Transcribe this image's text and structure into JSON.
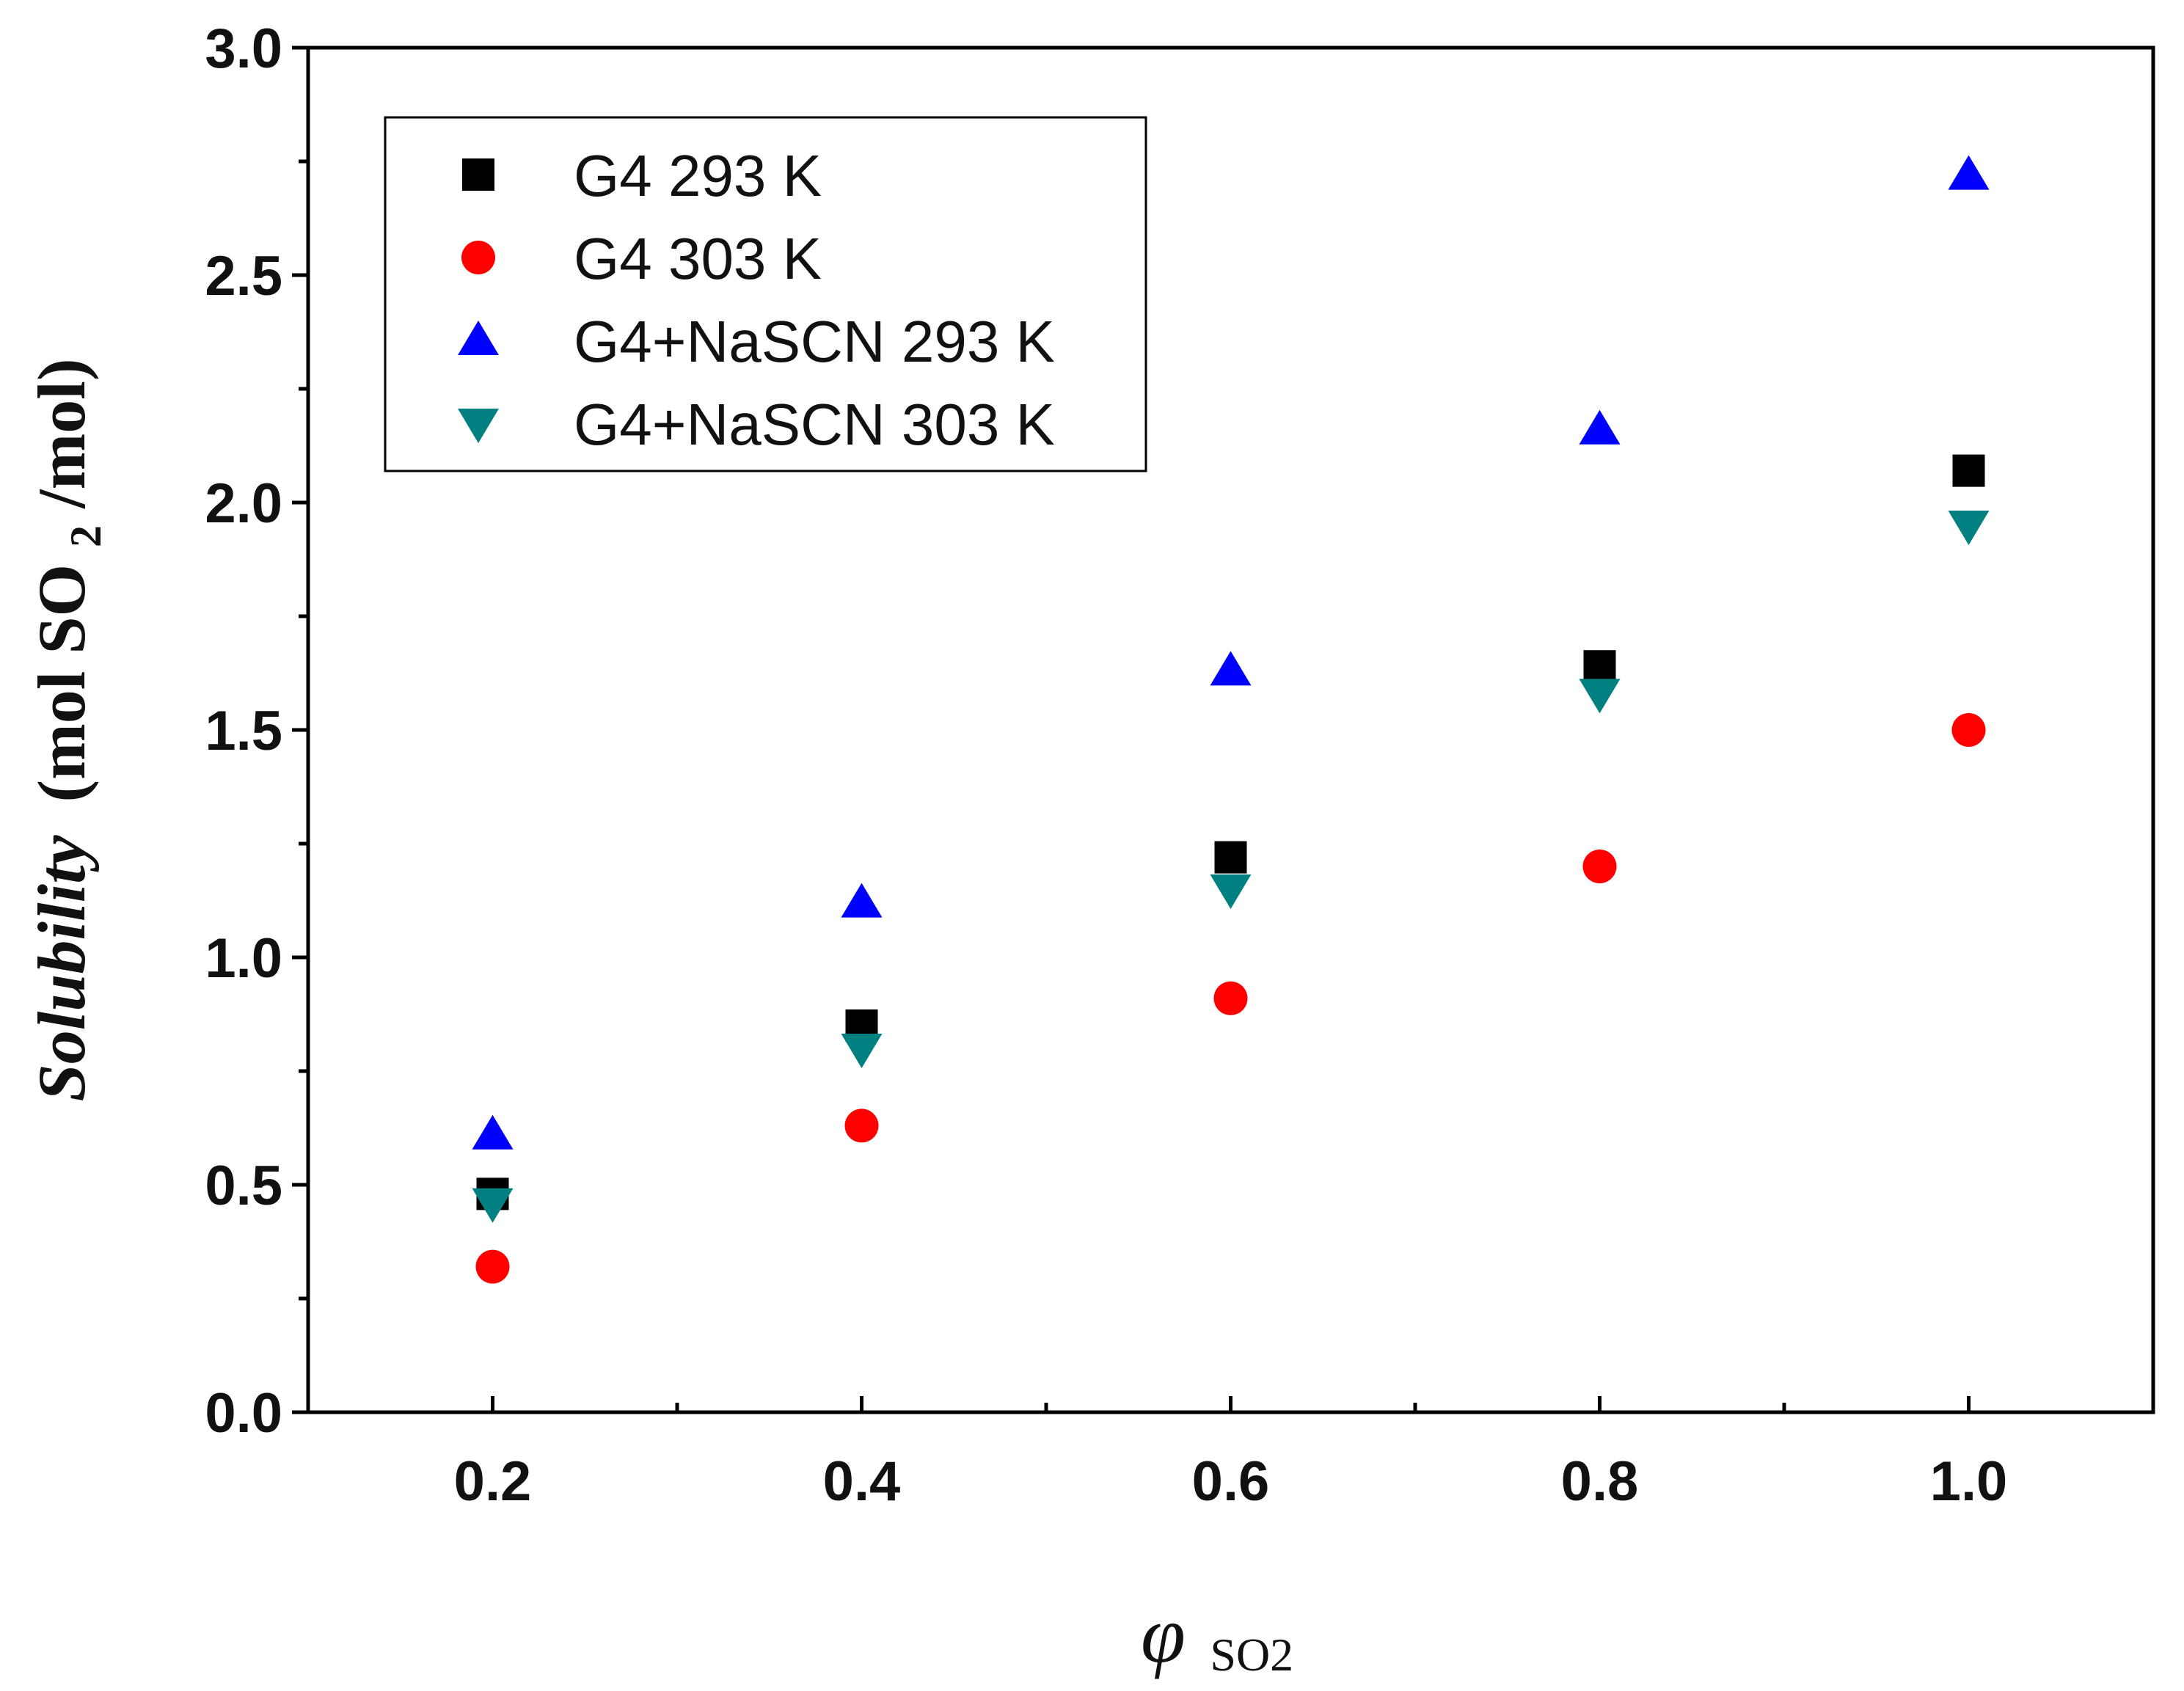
{
  "chart_data": {
    "type": "scatter",
    "xlabel": "φ",
    "xlabel_sub": "SO2",
    "ylabel": {
      "italic": "Solubility",
      "prefix": "(mol SO",
      "subscript": "2",
      "suffix": "/mol)"
    },
    "xlim": [
      0.1,
      1.1
    ],
    "ylim": [
      0.0,
      3.0
    ],
    "xticks": [
      "0.2",
      "0.4",
      "0.6",
      "0.8",
      "1.0"
    ],
    "yticks": [
      "0.0",
      "0.5",
      "1.0",
      "1.5",
      "2.0",
      "2.5",
      "3.0"
    ],
    "legend_position": "top-left",
    "x": [
      0.2,
      0.4,
      0.6,
      0.8,
      1.0
    ],
    "series": [
      {
        "name": "G4 293 K",
        "marker": "square",
        "color": "#000000",
        "values": [
          0.48,
          0.85,
          1.22,
          1.64,
          2.07
        ]
      },
      {
        "name": "G4 303 K",
        "marker": "circle",
        "color": "#ff0000",
        "values": [
          0.32,
          0.63,
          0.91,
          1.2,
          1.5
        ]
      },
      {
        "name": "G4+NaSCN 293 K",
        "marker": "triangle-up",
        "color": "#0000ff",
        "values": [
          0.61,
          1.12,
          1.63,
          2.16,
          2.72
        ]
      },
      {
        "name": "G4+NaSCN 303 K",
        "marker": "triangle-down",
        "color": "#008080",
        "values": [
          0.46,
          0.8,
          1.15,
          1.58,
          1.95
        ]
      }
    ]
  }
}
